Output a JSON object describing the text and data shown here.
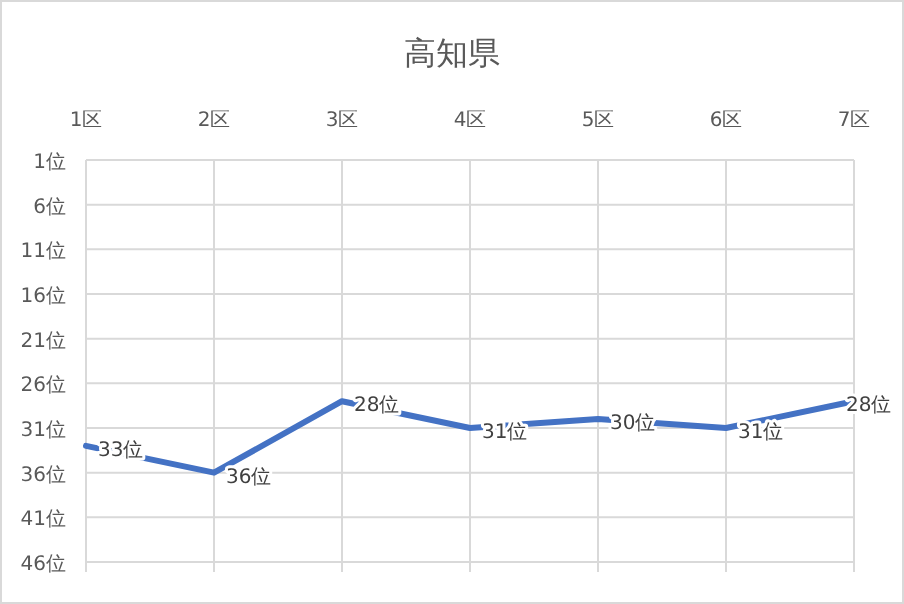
{
  "chart_data": {
    "type": "line",
    "title": "高知県",
    "categories": [
      "1区",
      "2区",
      "3区",
      "4区",
      "5区",
      "6区",
      "7区"
    ],
    "series": [
      {
        "color": "#4472c4",
        "values": [
          33,
          36,
          28,
          31,
          30,
          31,
          28
        ],
        "value_labels": [
          "33位",
          "36位",
          "28位",
          "31位",
          "30位",
          "31位",
          "28位"
        ]
      }
    ],
    "ylim": [
      46,
      1
    ],
    "yticks": [
      {
        "value": 1,
        "label": "1位"
      },
      {
        "value": 6,
        "label": "6位"
      },
      {
        "value": 11,
        "label": "11位"
      },
      {
        "value": 16,
        "label": "16位"
      },
      {
        "value": 21,
        "label": "21位"
      },
      {
        "value": 26,
        "label": "26位"
      },
      {
        "value": 31,
        "label": "31位"
      },
      {
        "value": 36,
        "label": "36位"
      },
      {
        "value": 41,
        "label": "41位"
      },
      {
        "value": 46,
        "label": "46位"
      }
    ],
    "grid": true,
    "marker": "none",
    "line_style": "solid"
  }
}
